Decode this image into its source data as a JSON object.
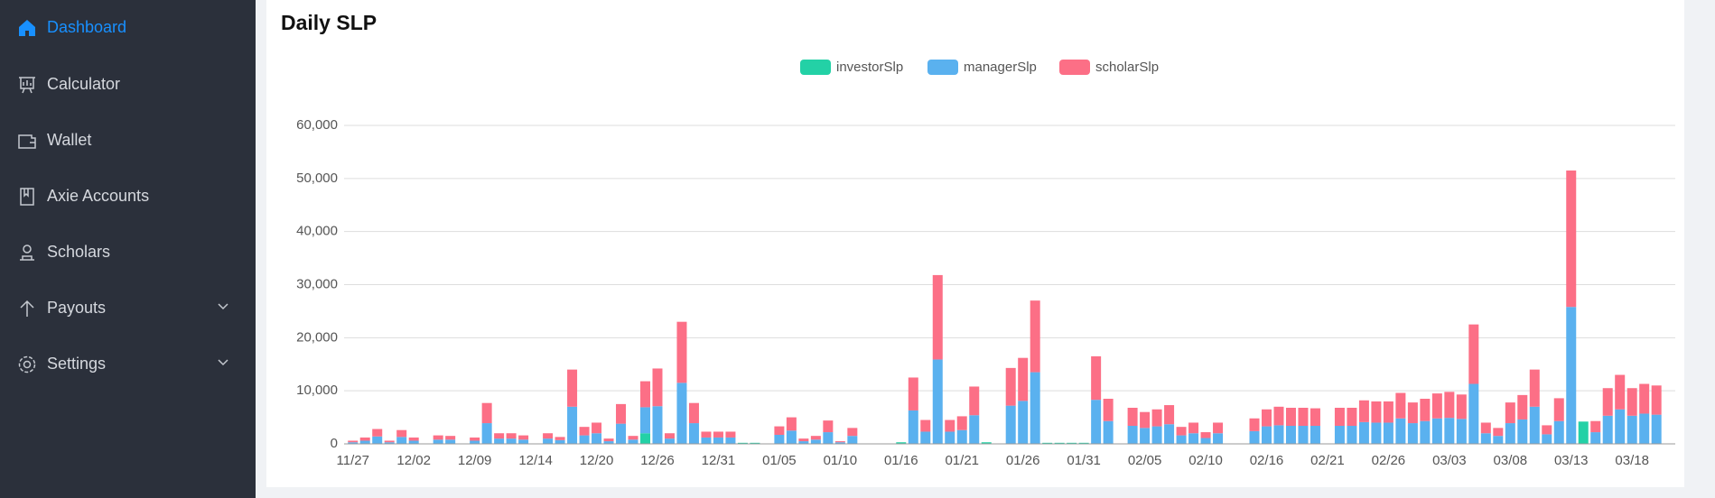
{
  "sidebar": {
    "menu": [
      "Dashboard",
      "Calculator",
      "Wallet",
      "Axie Accounts",
      "Scholars",
      "Payouts",
      "Settings"
    ]
  },
  "chart_data": {
    "type": "bar",
    "stacked": true,
    "title": "Daily SLP",
    "grid": true,
    "legend": "top",
    "categories": [
      "11/27",
      null,
      null,
      null,
      null,
      "12/02",
      null,
      null,
      null,
      null,
      "12/09",
      null,
      null,
      null,
      null,
      "12/14",
      null,
      null,
      null,
      null,
      "12/20",
      null,
      null,
      null,
      null,
      "12/26",
      null,
      null,
      null,
      null,
      "12/31",
      null,
      null,
      null,
      null,
      "01/05",
      null,
      null,
      null,
      null,
      "01/10",
      null,
      null,
      null,
      null,
      "01/16",
      null,
      null,
      null,
      null,
      "01/21",
      null,
      null,
      null,
      null,
      "01/26",
      null,
      null,
      null,
      null,
      "01/31",
      null,
      null,
      null,
      null,
      "02/05",
      null,
      null,
      null,
      null,
      "02/10",
      null,
      null,
      null,
      null,
      "02/16",
      null,
      null,
      null,
      null,
      "02/21",
      null,
      null,
      null,
      null,
      "02/26",
      null,
      null,
      null,
      null,
      "03/03",
      null,
      null,
      null,
      null,
      "03/08",
      null,
      null,
      null,
      null,
      "03/13",
      null,
      null,
      null,
      null,
      "03/18",
      null,
      null
    ],
    "series": [
      {
        "name": "investorSlp",
        "color": "#23d1a6",
        "values": [
          0,
          0,
          0,
          0,
          0,
          0,
          0,
          0,
          0,
          0,
          0,
          0,
          0,
          0,
          0,
          0,
          0,
          0,
          0,
          0,
          0,
          0,
          0,
          0,
          2000,
          0,
          0,
          0,
          0,
          0,
          0,
          0,
          200,
          200,
          0,
          0,
          0,
          0,
          0,
          0,
          0,
          0,
          0,
          0,
          0,
          300,
          0,
          0,
          0,
          0,
          0,
          0,
          300,
          0,
          0,
          0,
          0,
          200,
          200,
          200,
          200,
          0,
          0,
          0,
          0,
          0,
          0,
          0,
          0,
          0,
          0,
          0,
          0,
          0,
          0,
          0,
          0,
          0,
          0,
          0,
          0,
          0,
          0,
          0,
          0,
          0,
          0,
          0,
          0,
          0,
          0,
          0,
          0,
          0,
          0,
          0,
          0,
          0,
          0,
          0,
          0,
          4200,
          0,
          0,
          0,
          0,
          0,
          0
        ]
      },
      {
        "name": "managerSlp",
        "color": "#5ab1ef",
        "values": [
          300,
          600,
          1400,
          300,
          1300,
          600,
          0,
          800,
          800,
          0,
          600,
          3900,
          1000,
          1000,
          800,
          0,
          1000,
          700,
          7000,
          1600,
          2000,
          500,
          3800,
          800,
          4900,
          7100,
          1000,
          11500,
          3900,
          1200,
          1200,
          1200,
          0,
          0,
          0,
          1700,
          2500,
          500,
          800,
          2200,
          300,
          1500,
          0,
          0,
          0,
          0,
          6300,
          2300,
          15900,
          2300,
          2600,
          5400,
          0,
          0,
          7200,
          8100,
          13500,
          0,
          0,
          0,
          0,
          8300,
          4300,
          0,
          3400,
          3000,
          3300,
          3700,
          1600,
          2000,
          1100,
          2000,
          0,
          0,
          2400,
          3300,
          3500,
          3400,
          3400,
          3400,
          0,
          3400,
          3400,
          4100,
          4000,
          4000,
          4800,
          3900,
          4300,
          4800,
          4900,
          4700,
          11300,
          2000,
          1500,
          3900,
          4600,
          7000,
          1800,
          4300,
          25800,
          0,
          2200,
          5300,
          6500,
          5300,
          5700,
          5500
        ]
      },
      {
        "name": "scholarSlp",
        "color": "#fc6f86",
        "values": [
          300,
          600,
          1400,
          300,
          1300,
          600,
          0,
          800,
          700,
          0,
          600,
          3800,
          1000,
          1000,
          800,
          0,
          1000,
          600,
          7000,
          1600,
          2000,
          500,
          3700,
          700,
          4900,
          7100,
          1000,
          11500,
          3800,
          1100,
          1100,
          1100,
          0,
          0,
          0,
          1600,
          2500,
          500,
          700,
          2200,
          200,
          1500,
          0,
          0,
          0,
          0,
          6200,
          2200,
          15900,
          2200,
          2600,
          5400,
          0,
          0,
          7100,
          8100,
          13500,
          0,
          0,
          0,
          0,
          8200,
          4200,
          0,
          3400,
          3000,
          3200,
          3600,
          1600,
          2000,
          1100,
          2000,
          0,
          0,
          2400,
          3200,
          3500,
          3400,
          3400,
          3300,
          0,
          3400,
          3400,
          4100,
          4000,
          4000,
          4800,
          3900,
          4200,
          4700,
          4900,
          4600,
          11200,
          2000,
          1500,
          3900,
          4600,
          7000,
          1700,
          4300,
          25700,
          0,
          2100,
          5200,
          6500,
          5200,
          5600,
          5500
        ]
      }
    ],
    "ylim": [
      0,
      60000
    ],
    "yticks": [
      0,
      {
        "value": 10000,
        "label": "10,000"
      },
      {
        "value": 20000,
        "label": "20,000"
      },
      {
        "value": 30000,
        "label": "30,000"
      },
      {
        "value": 40000,
        "label": "40,000"
      },
      {
        "value": 50000,
        "label": "50,000"
      },
      {
        "value": 60000,
        "label": "60,000"
      }
    ]
  }
}
